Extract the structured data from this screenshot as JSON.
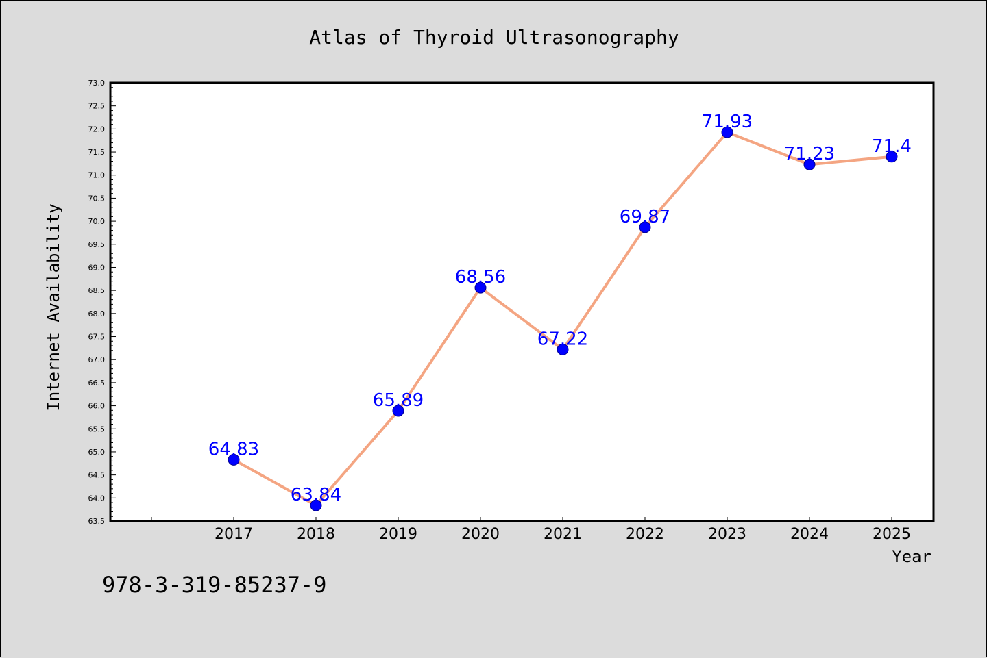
{
  "chart_data": {
    "type": "line",
    "title": "Atlas of Thyroid Ultrasonography",
    "xlabel": "Year",
    "ylabel": "Internet Availability",
    "x": [
      "2017",
      "2018",
      "2019",
      "2020",
      "2021",
      "2022",
      "2023",
      "2024",
      "2025"
    ],
    "series": [
      {
        "values": [
          64.83,
          63.84,
          65.89,
          68.56,
          67.22,
          69.87,
          71.93,
          71.23,
          71.4
        ],
        "data_labels": [
          "64.83",
          "63.84",
          "65.89",
          "68.56",
          "67.22",
          "69.87",
          "71.93",
          "71.23",
          "71.4"
        ],
        "line_color": "#f4a582",
        "marker_color": "#0000ff"
      }
    ],
    "ylim": [
      63.5,
      73.0
    ],
    "yticks": [
      "63.5",
      "64.0",
      "64.5",
      "65.0",
      "65.5",
      "66.0",
      "66.5",
      "67.0",
      "67.5",
      "68.0",
      "68.5",
      "69.0",
      "69.5",
      "70.0",
      "70.5",
      "71.0",
      "71.5",
      "72.0",
      "72.5",
      "73.0"
    ],
    "grid": false,
    "legend": "none"
  },
  "footer": {
    "isbn": "978-3-319-85237-9"
  },
  "colors": {
    "background": "#dcdcdc",
    "plot_background": "#ffffff",
    "line": "#f4a582",
    "marker": "#0000ff",
    "data_label": "#0000ff"
  }
}
